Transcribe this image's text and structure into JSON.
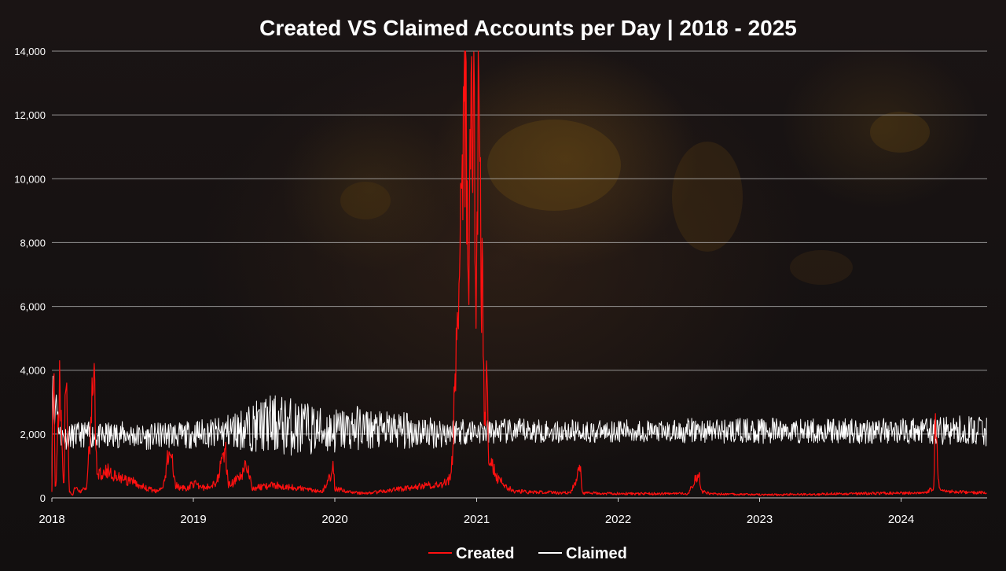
{
  "chart_data": {
    "type": "line",
    "title": "Created VS Claimed Accounts per Day | 2018 - 2025",
    "xlabel": "",
    "ylabel": "",
    "x_range": [
      "2018-01-01",
      "2024-08-10"
    ],
    "ylim": [
      0,
      14000
    ],
    "y_ticks": [
      0,
      2000,
      4000,
      6000,
      8000,
      10000,
      12000,
      14000
    ],
    "y_tick_labels": [
      "0",
      "2,000",
      "4,000",
      "6,000",
      "8,000",
      "10,000",
      "12,000",
      "14,000"
    ],
    "x_tick_labels": [
      "2018",
      "2019",
      "2020",
      "2021",
      "2022",
      "2023",
      "2024"
    ],
    "grid": "horizontal",
    "legend_position": "bottom-center",
    "colors": {
      "Created": "#ff1010",
      "Claimed": "#ffffff"
    },
    "series": [
      {
        "name": "Created",
        "x": [
          "2018-01-01",
          "2018-01-05",
          "2018-01-09",
          "2018-01-12",
          "2018-01-20",
          "2018-02-01",
          "2018-02-06",
          "2018-02-15",
          "2018-02-24",
          "2018-03-01",
          "2018-03-15",
          "2018-04-01",
          "2018-04-20",
          "2018-04-25",
          "2018-05-01",
          "2018-05-15",
          "2018-06-01",
          "2018-06-15",
          "2018-07-01",
          "2018-07-15",
          "2018-08-01",
          "2018-08-15",
          "2018-09-01",
          "2018-09-15",
          "2018-10-01",
          "2018-10-15",
          "2018-11-01",
          "2018-11-15",
          "2018-12-01",
          "2018-12-15",
          "2019-01-01",
          "2019-02-01",
          "2019-03-01",
          "2019-03-25",
          "2019-04-01",
          "2019-05-01",
          "2019-05-20",
          "2019-06-01",
          "2019-07-01",
          "2019-08-01",
          "2019-09-01",
          "2019-10-01",
          "2019-11-01",
          "2019-12-01",
          "2019-12-28",
          "2020-01-01",
          "2020-02-01",
          "2020-03-01",
          "2020-04-01",
          "2020-05-01",
          "2020-06-01",
          "2020-07-01",
          "2020-08-01",
          "2020-09-01",
          "2020-10-01",
          "2020-10-25",
          "2020-11-01",
          "2020-11-06",
          "2020-11-12",
          "2020-11-18",
          "2020-11-24",
          "2020-11-30",
          "2020-12-04",
          "2020-12-08",
          "2020-12-12",
          "2020-12-16",
          "2020-12-19",
          "2020-12-22",
          "2020-12-25",
          "2020-12-28",
          "2020-12-31",
          "2021-01-03",
          "2021-01-06",
          "2021-01-09",
          "2021-01-12",
          "2021-01-15",
          "2021-01-18",
          "2021-01-21",
          "2021-01-24",
          "2021-01-27",
          "2021-01-30",
          "2021-02-03",
          "2021-02-08",
          "2021-02-13",
          "2021-02-18",
          "2021-02-23",
          "2021-03-01",
          "2021-03-05",
          "2021-03-10",
          "2021-03-15",
          "2021-03-20",
          "2021-03-25",
          "2021-04-01",
          "2021-04-10",
          "2021-04-20",
          "2021-05-01",
          "2021-05-15",
          "2021-06-01",
          "2021-07-01",
          "2021-08-01",
          "2021-09-01",
          "2021-09-25",
          "2021-10-01",
          "2021-11-01",
          "2021-12-01",
          "2022-01-01",
          "2022-02-01",
          "2022-03-01",
          "2022-04-01",
          "2022-05-01",
          "2022-06-01",
          "2022-07-01",
          "2022-07-20",
          "2022-07-28",
          "2022-08-05",
          "2022-09-01",
          "2022-10-01",
          "2022-11-01",
          "2022-12-01",
          "2023-01-01",
          "2023-02-01",
          "2023-03-01",
          "2023-04-01",
          "2023-05-01",
          "2023-06-01",
          "2023-07-01",
          "2023-08-01",
          "2023-09-01",
          "2023-10-01",
          "2023-11-01",
          "2023-12-01",
          "2024-01-01",
          "2024-02-01",
          "2024-03-01",
          "2024-03-25",
          "2024-03-30",
          "2024-04-02",
          "2024-04-08",
          "2024-04-15",
          "2024-05-01",
          "2024-06-01",
          "2024-07-01",
          "2024-08-10"
        ],
        "values": [
          200,
          5100,
          400,
          300,
          3700,
          300,
          3900,
          200,
          100,
          300,
          200,
          300,
          4100,
          1200,
          700,
          900,
          800,
          700,
          600,
          500,
          500,
          400,
          300,
          250,
          200,
          300,
          1700,
          400,
          300,
          300,
          450,
          300,
          500,
          1500,
          400,
          600,
          1100,
          300,
          350,
          400,
          350,
          300,
          250,
          200,
          900,
          300,
          200,
          150,
          150,
          200,
          250,
          300,
          350,
          400,
          400,
          600,
          1500,
          4000,
          6000,
          8500,
          10500,
          12000,
          13500,
          9000,
          7000,
          10000,
          11000,
          8000,
          12000,
          9500,
          5000,
          10000,
          14000,
          11000,
          8000,
          6500,
          5000,
          3000,
          2000,
          5600,
          1500,
          1200,
          1000,
          900,
          700,
          600,
          550,
          500,
          450,
          400,
          350,
          300,
          250,
          200,
          200,
          200,
          180,
          180,
          170,
          160,
          160,
          900,
          150,
          150,
          140,
          140,
          130,
          130,
          130,
          130,
          130,
          140,
          600,
          800,
          200,
          120,
          120,
          110,
          110,
          100,
          100,
          100,
          120,
          110,
          110,
          130,
          130,
          130,
          140,
          140,
          150,
          150,
          150,
          160,
          300,
          2700,
          1500,
          300,
          200,
          200,
          180,
          170,
          180
        ]
      },
      {
        "name": "Claimed",
        "x": [
          "2018-01-01",
          "2018-01-03",
          "2018-01-07",
          "2018-01-12",
          "2018-01-20",
          "2018-02-01",
          "2018-03-01",
          "2018-04-01",
          "2018-05-01",
          "2018-06-01",
          "2018-07-01",
          "2018-08-01",
          "2018-09-01",
          "2018-10-01",
          "2018-11-01",
          "2018-12-01",
          "2019-01-01",
          "2019-02-01",
          "2019-03-01",
          "2019-04-01",
          "2019-05-01",
          "2019-06-01",
          "2019-07-01",
          "2019-08-01",
          "2019-09-01",
          "2019-10-01",
          "2019-11-01",
          "2019-12-01",
          "2020-01-01",
          "2020-02-01",
          "2020-03-01",
          "2020-04-01",
          "2020-05-01",
          "2020-06-01",
          "2020-07-01",
          "2020-08-01",
          "2020-09-01",
          "2020-10-01",
          "2020-11-01",
          "2020-12-01",
          "2021-01-01",
          "2021-02-01",
          "2021-03-01",
          "2021-04-01",
          "2021-05-01",
          "2021-06-01",
          "2021-07-01",
          "2021-08-01",
          "2021-09-01",
          "2021-10-01",
          "2021-11-01",
          "2021-12-01",
          "2022-01-01",
          "2022-03-01",
          "2022-05-01",
          "2022-07-01",
          "2022-09-01",
          "2022-11-01",
          "2023-01-01",
          "2023-03-01",
          "2023-05-01",
          "2023-07-01",
          "2023-09-01",
          "2023-11-01",
          "2024-01-01",
          "2024-03-01",
          "2024-05-01",
          "2024-07-01",
          "2024-08-10"
        ],
        "values": [
          200,
          4300,
          2100,
          3300,
          2000,
          1900,
          1950,
          2000,
          1900,
          1950,
          2000,
          1950,
          1900,
          1950,
          2000,
          1950,
          2000,
          2050,
          2000,
          2100,
          2150,
          2200,
          2300,
          2300,
          2250,
          2200,
          2150,
          2100,
          2100,
          2150,
          2200,
          2150,
          2100,
          2150,
          2100,
          2100,
          2050,
          2050,
          2100,
          2100,
          2100,
          2050,
          2100,
          2050,
          2100,
          2100,
          2100,
          2050,
          2100,
          2100,
          2050,
          2100,
          2100,
          2100,
          2050,
          2100,
          2100,
          2100,
          2100,
          2100,
          2100,
          2100,
          2100,
          2100,
          2100,
          2100,
          2100,
          2100,
          2100
        ],
        "band_spread": [
          0,
          0,
          300,
          300,
          350,
          400,
          400,
          400,
          400,
          450,
          400,
          400,
          400,
          400,
          450,
          400,
          450,
          450,
          500,
          550,
          650,
          750,
          900,
          950,
          950,
          900,
          800,
          750,
          750,
          700,
          700,
          650,
          600,
          600,
          600,
          550,
          500,
          500,
          450,
          450,
          400,
          400,
          400,
          400,
          400,
          400,
          350,
          350,
          350,
          350,
          350,
          350,
          350,
          350,
          350,
          400,
          400,
          400,
          400,
          400,
          400,
          400,
          400,
          400,
          400,
          400,
          450,
          500,
          500
        ]
      }
    ]
  }
}
